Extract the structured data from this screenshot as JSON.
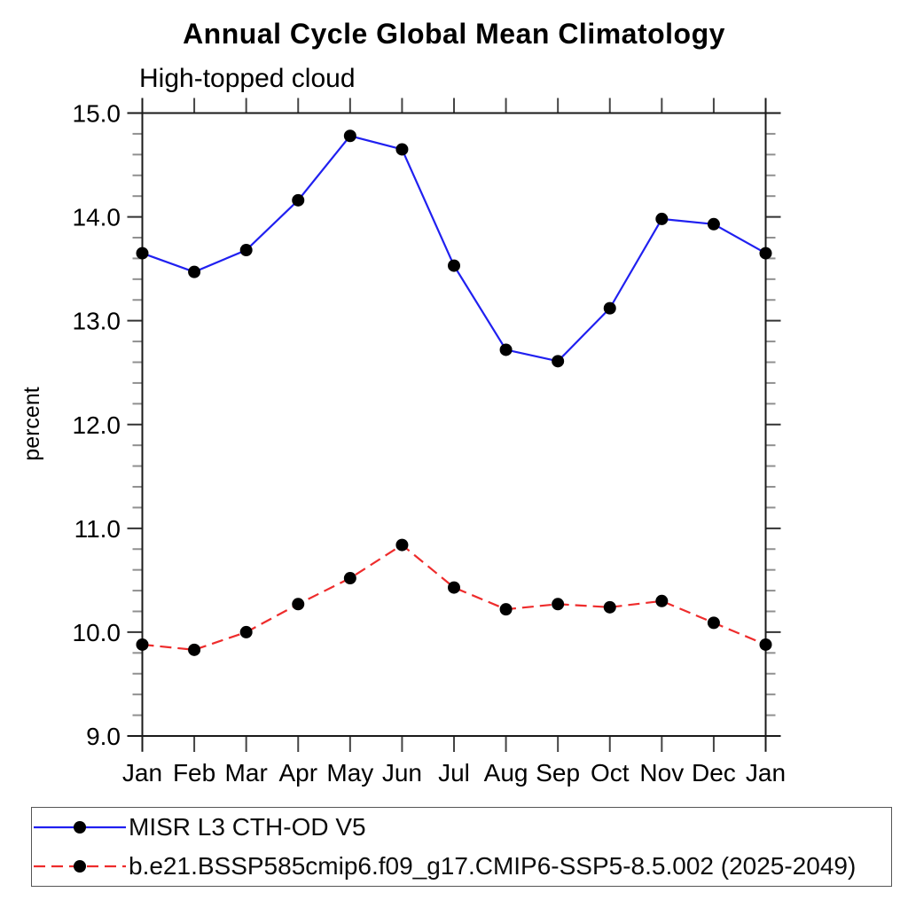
{
  "chart_data": {
    "type": "line",
    "title": "Annual Cycle Global Mean Climatology",
    "subtitle": "High-topped cloud",
    "ylabel": "percent",
    "xlabel": "",
    "categories": [
      "Jan",
      "Feb",
      "Mar",
      "Apr",
      "May",
      "Jun",
      "Jul",
      "Aug",
      "Sep",
      "Oct",
      "Nov",
      "Dec",
      "Jan"
    ],
    "ylim": [
      9.0,
      15.0
    ],
    "ytick_labels": [
      "9.0",
      "10.0",
      "11.0",
      "12.0",
      "13.0",
      "14.0",
      "15.0"
    ],
    "ytick_values": [
      9.0,
      10.0,
      11.0,
      12.0,
      13.0,
      14.0,
      15.0
    ],
    "y_minor_step": 0.2,
    "grid": false,
    "legend_position": "bottom",
    "series": [
      {
        "name": "MISR L3 CTH-OD V5",
        "color": "#2020f0",
        "line_style": "solid",
        "marker": "filled-circle",
        "marker_color": "#000000",
        "values": [
          13.65,
          13.47,
          13.68,
          14.16,
          14.78,
          14.65,
          13.53,
          12.72,
          12.61,
          13.12,
          13.98,
          13.93,
          13.65
        ]
      },
      {
        "name": "b.e21.BSSP585cmip6.f09_g17.CMIP6-SSP5-8.5.002 (2025-2049)",
        "color": "#ee2c2c",
        "line_style": "dashed",
        "marker": "filled-circle",
        "marker_color": "#000000",
        "values": [
          9.88,
          9.83,
          10.0,
          10.27,
          10.52,
          10.84,
          10.43,
          10.22,
          10.27,
          10.24,
          10.3,
          10.09,
          9.88
        ]
      }
    ]
  }
}
